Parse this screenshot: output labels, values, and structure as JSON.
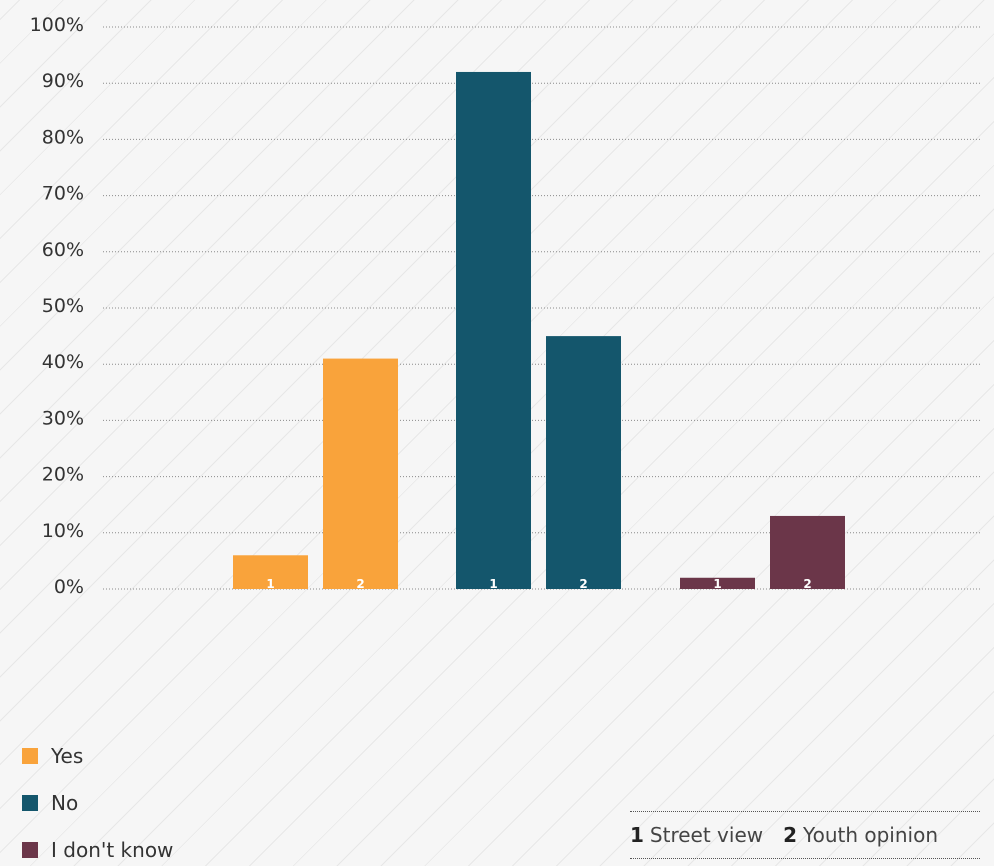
{
  "chart_data": {
    "type": "bar",
    "title": "",
    "xlabel": "",
    "ylabel": "",
    "ylim": [
      0,
      100
    ],
    "yticks": [
      "0%",
      "10%",
      "20%",
      "30%",
      "40%",
      "50%",
      "60%",
      "70%",
      "80%",
      "90%",
      "100%"
    ],
    "grid": true,
    "legend_position": "bottom-left",
    "categories": [
      "Yes",
      "No",
      "I don't know"
    ],
    "category_colors": [
      "#f9a33b",
      "#14566c",
      "#6b3649"
    ],
    "bar_labels": [
      "1",
      "2"
    ],
    "series": [
      {
        "name": "Street view",
        "key": "1",
        "values": [
          6,
          92,
          2
        ]
      },
      {
        "name": "Youth opinion",
        "key": "2",
        "values": [
          41,
          45,
          13
        ]
      }
    ]
  }
}
